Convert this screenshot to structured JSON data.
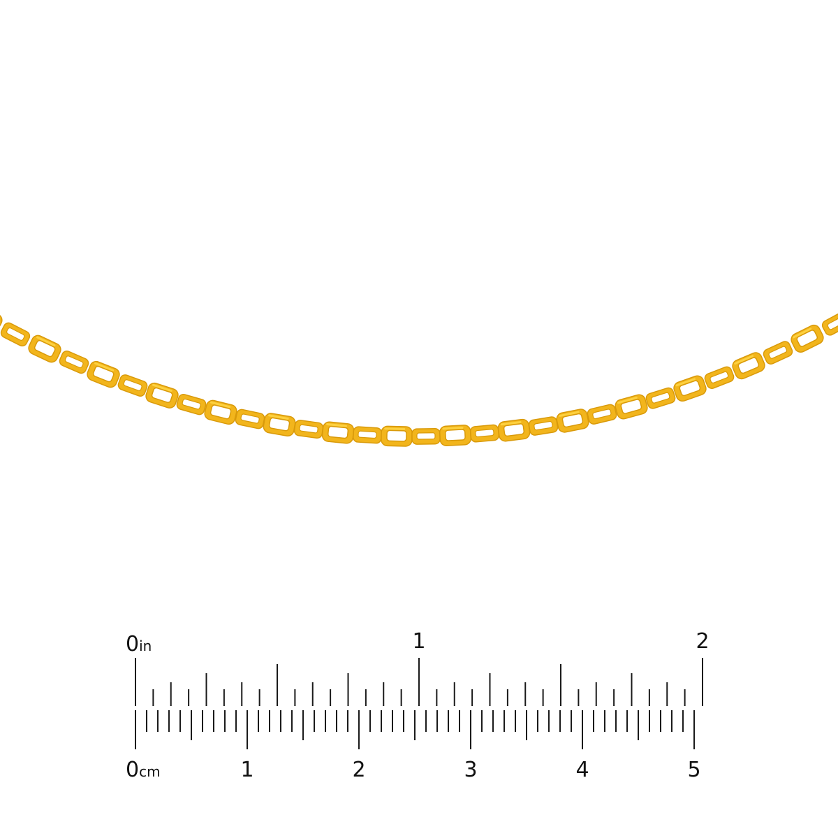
{
  "product": {
    "subject": "chain",
    "metal_color": "#F2B51C",
    "metal_shadow": "#D99A0A",
    "metal_highlight": "#FFD84A"
  },
  "ruler": {
    "inch_unit": "in",
    "cm_unit": "cm",
    "inch_labels": [
      "0",
      "1",
      "2"
    ],
    "cm_labels": [
      "0",
      "1",
      "2",
      "3",
      "4",
      "5"
    ],
    "tick_color": "#1a1a1a"
  }
}
